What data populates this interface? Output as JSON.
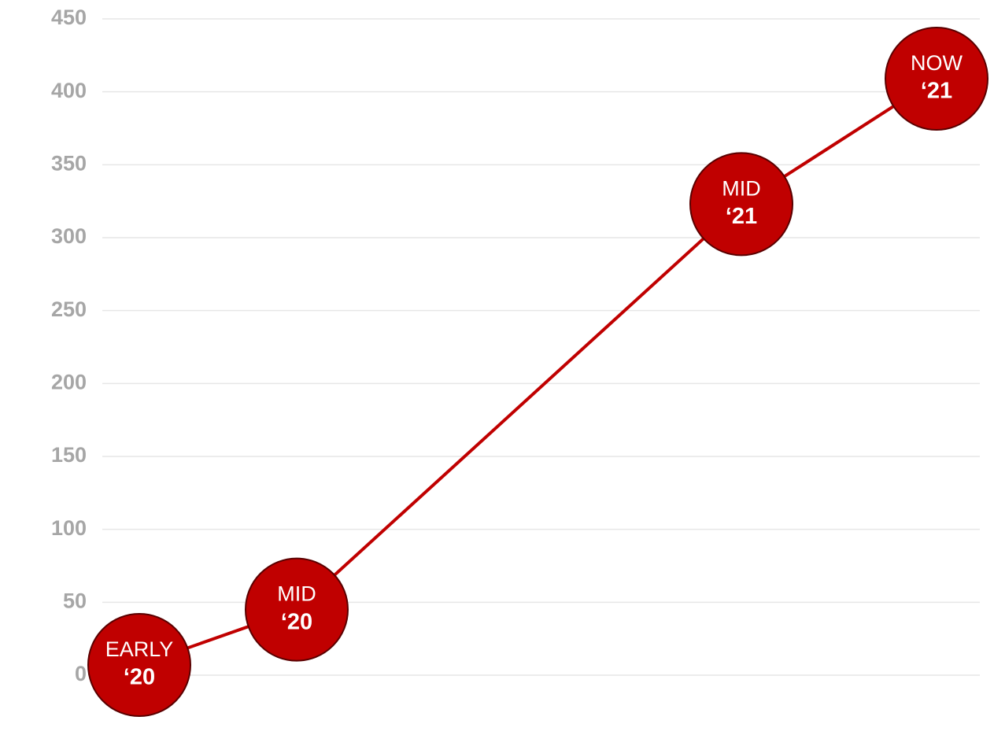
{
  "chart_data": {
    "type": "line",
    "categories": [
      [
        "EARLY",
        "‘20"
      ],
      [
        "MID",
        "‘20"
      ],
      [
        "MID",
        "‘21"
      ],
      [
        "NOW",
        "‘21"
      ]
    ],
    "values": [
      7,
      45,
      323,
      409
    ],
    "color": "#c00000",
    "ylim": [
      0,
      450
    ],
    "yticks": [
      0,
      50,
      100,
      150,
      200,
      250,
      300,
      350,
      400,
      450
    ],
    "grid": true
  }
}
